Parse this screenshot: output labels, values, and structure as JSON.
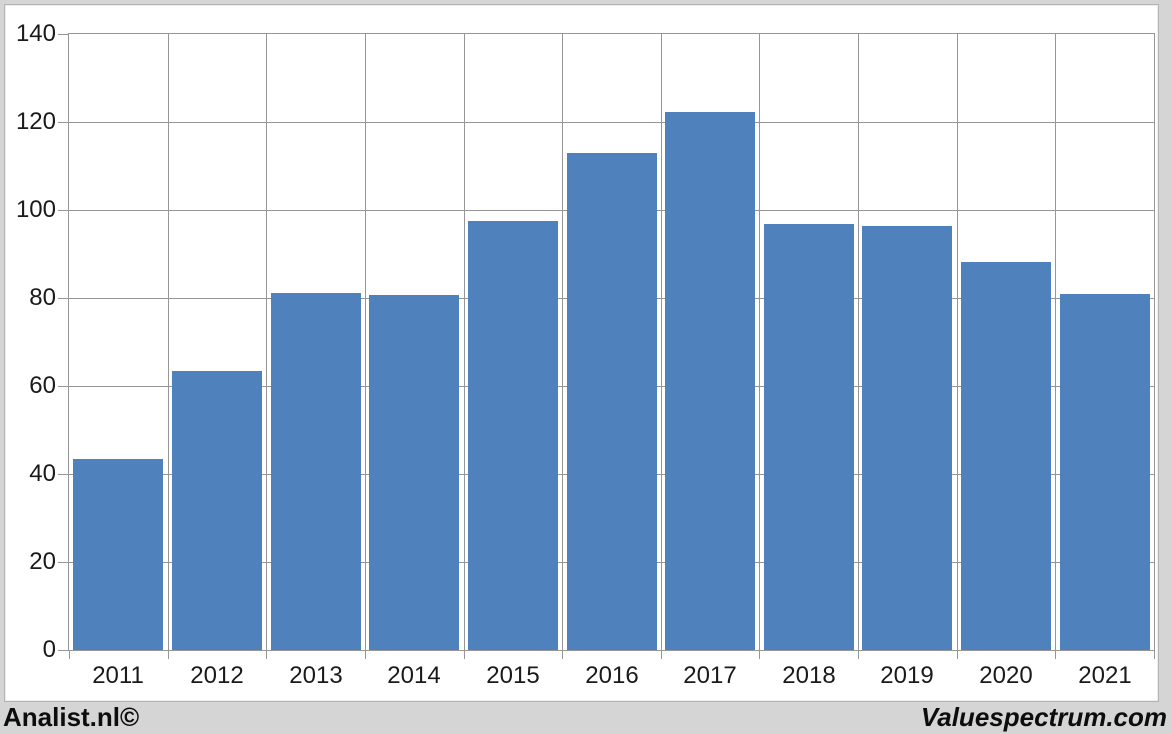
{
  "chart_data": {
    "type": "bar",
    "title": "",
    "xlabel": "",
    "ylabel": "",
    "categories": [
      "2011",
      "2012",
      "2013",
      "2014",
      "2015",
      "2016",
      "2017",
      "2018",
      "2019",
      "2020",
      "2021"
    ],
    "values": [
      43.3,
      63.5,
      81.2,
      80.6,
      97.4,
      112.9,
      122.2,
      96.9,
      96.4,
      88.2,
      80.9
    ],
    "ylim": [
      0,
      140
    ],
    "yticks": [
      0,
      20,
      40,
      60,
      80,
      100,
      120,
      140
    ],
    "grid": true,
    "legend": "none",
    "bar_color": "#4f81bd",
    "grid_color": "#969696"
  },
  "footer": {
    "left_text": "Analist.nl©",
    "right_text": "Valuespectrum.com"
  },
  "colors": {
    "page_background": "#d5d5d5",
    "panel_background": "#ffffff",
    "text": "#1a1a1a"
  }
}
